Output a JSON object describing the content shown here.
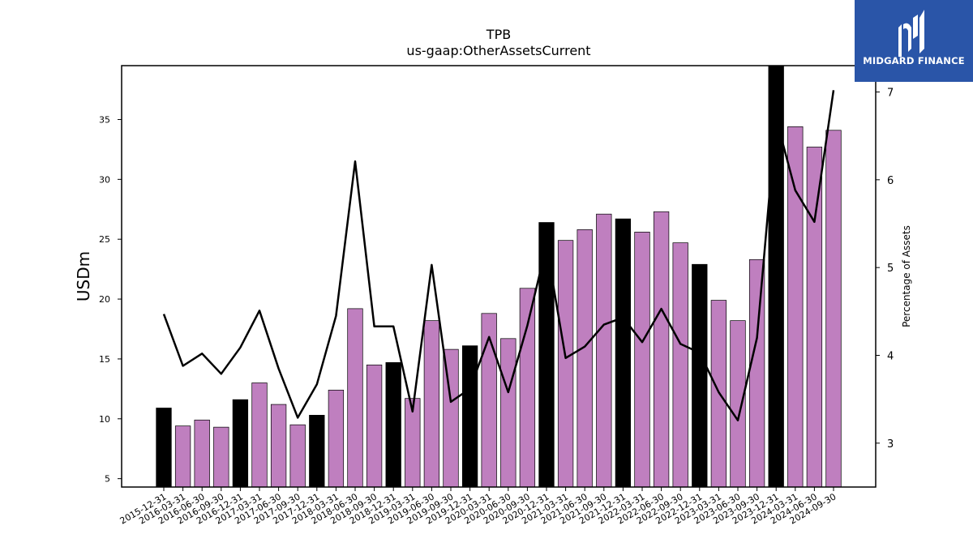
{
  "brand": {
    "name": "MIDGARD FINANCE",
    "bg_color": "#2a55a8",
    "icon": "midgard-logo-icon"
  },
  "chart_data": {
    "type": "bar",
    "title": "TPB",
    "subtitle": "us-gaap:OtherAssetsCurrent",
    "ylabel": "USDm",
    "y2label": "Percentage of Assets",
    "ylim": [
      4.3,
      39.5
    ],
    "y2lim": [
      2.5,
      7.3
    ],
    "yticks": [
      5,
      10,
      15,
      20,
      25,
      30,
      35
    ],
    "y2ticks": [
      3,
      4,
      5,
      6,
      7
    ],
    "grid": false,
    "bar_colors": {
      "year_end": "#000000",
      "quarter": "#bf7fbf"
    },
    "line_color": "#000000",
    "categories": [
      "2015-12-31",
      "2016-03-31",
      "2016-06-30",
      "2016-09-30",
      "2016-12-31",
      "2017-03-31",
      "2017-06-30",
      "2017-09-30",
      "2017-12-31",
      "2018-03-31",
      "2018-06-30",
      "2018-09-30",
      "2018-12-31",
      "2019-03-31",
      "2019-06-30",
      "2019-09-30",
      "2019-12-31",
      "2020-03-31",
      "2020-06-30",
      "2020-09-30",
      "2020-12-31",
      "2021-03-31",
      "2021-06-30",
      "2021-09-30",
      "2021-12-31",
      "2022-03-31",
      "2022-06-30",
      "2022-09-30",
      "2022-12-31",
      "2023-03-31",
      "2023-06-30",
      "2023-09-30",
      "2023-12-31",
      "2024-03-31",
      "2024-06-30",
      "2024-09-30"
    ],
    "series": [
      {
        "type": "bar",
        "values": [
          10.9,
          9.4,
          9.9,
          9.3,
          11.6,
          13.0,
          11.2,
          9.5,
          10.3,
          12.4,
          19.2,
          14.5,
          14.7,
          11.7,
          18.2,
          15.8,
          16.1,
          18.8,
          16.7,
          20.9,
          26.4,
          24.9,
          25.8,
          27.1,
          26.7,
          25.6,
          27.3,
          24.7,
          22.9,
          19.9,
          18.2,
          23.3,
          39.5,
          34.4,
          32.7,
          34.1
        ]
      },
      {
        "type": "line",
        "axis": "right",
        "values": [
          4.47,
          3.88,
          4.02,
          3.79,
          4.09,
          4.51,
          3.85,
          3.29,
          3.67,
          4.45,
          6.21,
          4.33,
          4.33,
          3.36,
          5.03,
          3.47,
          3.62,
          4.21,
          3.58,
          4.34,
          5.25,
          3.97,
          4.1,
          4.35,
          4.43,
          4.15,
          4.53,
          4.13,
          4.03,
          3.58,
          3.26,
          4.2,
          6.7,
          5.88,
          5.52,
          7.02
        ]
      }
    ]
  }
}
